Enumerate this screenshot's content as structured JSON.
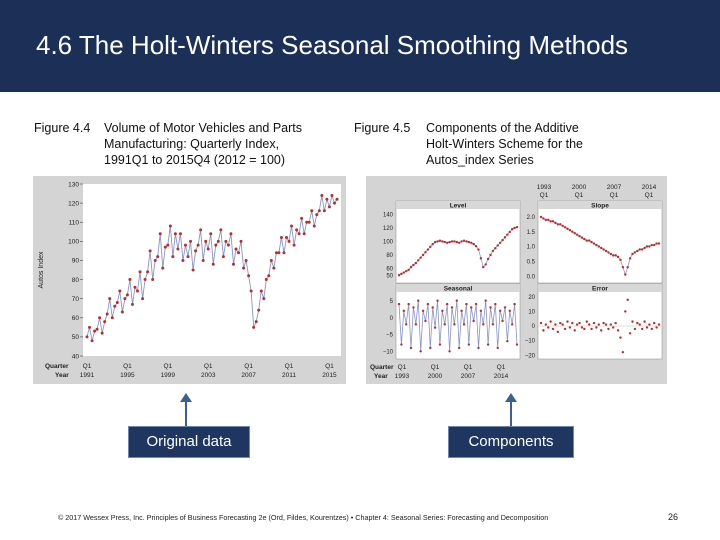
{
  "slide": {
    "title": "4.6 The Holt-Winters Seasonal Smoothing Methods",
    "footer": "© 2017 Wessex Press, Inc. Principles of Business Forecasting 2e (Ord, Fildes, Kourentzes) • Chapter 4: Seasonal Series: Forecasting and Decomposition",
    "page_number": "26"
  },
  "figure_left": {
    "number": "Figure 4.4",
    "caption_lines": [
      "Volume of Motor Vehicles and Parts",
      "Manufacturing: Quarterly Index,",
      "1991Q1 to 2015Q4 (2012 = 100)"
    ],
    "callout": "Original data"
  },
  "figure_right": {
    "number": "Figure 4.5",
    "caption_lines": [
      "Components of the Additive",
      "Holt-Winters Scheme for the",
      "Autos_index Series"
    ],
    "callout": "Components"
  },
  "colors": {
    "header": "#1b2f57",
    "callout": "#1e3660",
    "arrow": "#3d5f96",
    "series_line": "#8a94c4",
    "series_point": "#b52f2f"
  },
  "chart_data": [
    {
      "type": "line",
      "title": "",
      "ylabel": "Autos Index",
      "ylim": [
        40,
        130
      ],
      "yticks": [
        "130",
        "120",
        "110",
        "100",
        "90",
        "80",
        "70",
        "60",
        "50",
        "40"
      ],
      "x_axis_rows": [
        {
          "label": "Quarter",
          "ticks": [
            "Q1",
            "Q1",
            "Q1",
            "Q1",
            "Q1",
            "Q1",
            "Q1"
          ]
        },
        {
          "label": "Year",
          "ticks": [
            "1991",
            "1995",
            "1999",
            "2003",
            "2007",
            "2011",
            "2015"
          ]
        }
      ],
      "series": [
        {
          "values": [
            50,
            55,
            48,
            53,
            54,
            60,
            52,
            58,
            62,
            70,
            60,
            66,
            68,
            74,
            63,
            70,
            72,
            80,
            67,
            76,
            74,
            84,
            70,
            80,
            84,
            95,
            80,
            90,
            92,
            104,
            86,
            97,
            98,
            108,
            92,
            104,
            96,
            104,
            90,
            98,
            92,
            100,
            85,
            95,
            98,
            106,
            90,
            100,
            96,
            104,
            88,
            98,
            100,
            106,
            92,
            100,
            98,
            104,
            88,
            96,
            94,
            100,
            86,
            90,
            82,
            74,
            55,
            58,
            64,
            74,
            70,
            80,
            82,
            90,
            86,
            94,
            94,
            102,
            94,
            102,
            100,
            108,
            98,
            106,
            104,
            112,
            104,
            110,
            110,
            116,
            108,
            114,
            116,
            124,
            116,
            122,
            118,
            124,
            120,
            122
          ]
        }
      ]
    },
    {
      "type": "line",
      "title": "Level",
      "top_axis": {
        "quarter": [
          "1993",
          "2000",
          "2007",
          "2014"
        ],
        "year": [
          "Q1",
          "Q1",
          "Q1",
          "Q1"
        ]
      },
      "ylim": [
        40,
        145
      ],
      "yticks": [
        "140",
        "120",
        "100",
        "80",
        "60",
        "50"
      ],
      "series": [
        {
          "values": [
            50,
            52,
            54,
            56,
            58,
            62,
            65,
            68,
            72,
            76,
            80,
            84,
            88,
            92,
            96,
            99,
            100,
            101,
            100,
            99,
            98,
            99,
            100,
            100,
            99,
            98,
            100,
            101,
            100,
            99,
            98,
            96,
            93,
            88,
            75,
            62,
            66,
            74,
            80,
            86,
            90,
            94,
            98,
            102,
            106,
            110,
            114,
            118,
            120,
            121
          ]
        }
      ]
    },
    {
      "type": "line",
      "title": "Slope",
      "ylim": [
        -0.2,
        2.2
      ],
      "yticks": [
        "2.0",
        "1.5",
        "1.0",
        "0.5",
        "0.0"
      ],
      "series": [
        {
          "values": [
            2.0,
            1.95,
            1.9,
            1.9,
            1.85,
            1.85,
            1.8,
            1.75,
            1.75,
            1.7,
            1.65,
            1.6,
            1.55,
            1.5,
            1.45,
            1.4,
            1.35,
            1.3,
            1.25,
            1.2,
            1.2,
            1.15,
            1.1,
            1.05,
            1.0,
            0.95,
            0.9,
            0.85,
            0.8,
            0.75,
            0.7,
            0.7,
            0.65,
            0.55,
            0.3,
            0.05,
            0.3,
            0.6,
            0.75,
            0.8,
            0.85,
            0.9,
            0.9,
            0.95,
            1.0,
            1.0,
            1.05,
            1.05,
            1.1,
            1.1
          ]
        }
      ]
    },
    {
      "type": "line",
      "title": "Seasonal",
      "xlabel_rows": [
        {
          "label": "Quarter",
          "ticks": [
            "Q1",
            "Q1",
            "Q1",
            "Q1"
          ]
        },
        {
          "label": "Year",
          "ticks": [
            "1993",
            "2000",
            "2007",
            "2014"
          ]
        }
      ],
      "ylim": [
        -12,
        7
      ],
      "yticks": [
        "5",
        "0",
        "−5",
        "−10"
      ],
      "series": [
        {
          "values": [
            4,
            -8,
            2,
            -2,
            4,
            -9,
            3,
            -2,
            5,
            -10,
            2,
            -1,
            4,
            -9,
            3,
            -3,
            5,
            -8,
            2,
            -2,
            4,
            -10,
            3,
            -2,
            5,
            -9,
            2,
            -2,
            4,
            -8,
            3,
            -1,
            4,
            -9,
            2,
            -2,
            5,
            -8,
            3,
            -2,
            4,
            -9,
            2,
            -1,
            3,
            -7,
            2,
            -2,
            4,
            -8
          ]
        }
      ]
    },
    {
      "type": "scatter",
      "title": "Error",
      "ylim": [
        -22,
        22
      ],
      "yticks": [
        "20",
        "10",
        "0",
        "−10",
        "−20"
      ],
      "series": [
        {
          "values": [
            2,
            -3,
            1,
            -1,
            3,
            -2,
            1,
            -4,
            2,
            1,
            -2,
            3,
            -1,
            2,
            -3,
            1,
            2,
            -1,
            -2,
            3,
            1,
            -2,
            2,
            -1,
            1,
            -3,
            2,
            1,
            -2,
            1,
            -1,
            2,
            -3,
            -8,
            -18,
            10,
            18,
            -5,
            3,
            -2,
            2,
            1,
            -2,
            3,
            -1,
            1,
            -2,
            2,
            -1,
            1
          ]
        }
      ]
    }
  ]
}
